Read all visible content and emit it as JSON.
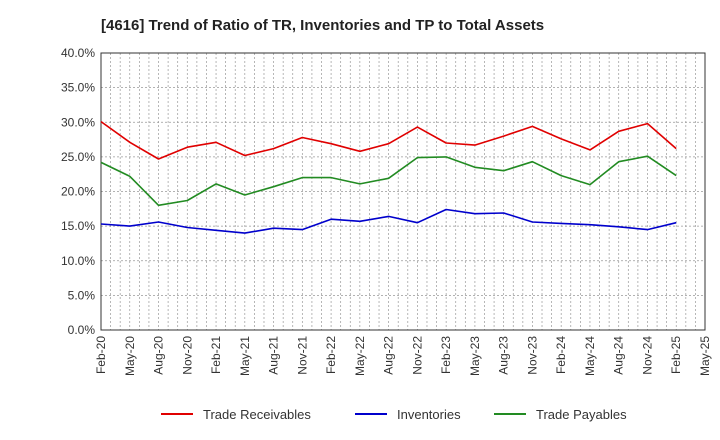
{
  "chart_data": {
    "type": "line",
    "title": "[4616]  Trend of Ratio of TR, Inventories and TP to Total Assets",
    "xlabel": "",
    "ylabel": "",
    "ylim": [
      0,
      40
    ],
    "y_ticks": [
      "0.0%",
      "5.0%",
      "10.0%",
      "15.0%",
      "20.0%",
      "25.0%",
      "30.0%",
      "35.0%",
      "40.0%"
    ],
    "x_ticks": [
      "Feb-20",
      "May-20",
      "Aug-20",
      "Nov-20",
      "Feb-21",
      "May-21",
      "Aug-21",
      "Nov-21",
      "Feb-22",
      "May-22",
      "Aug-22",
      "Nov-22",
      "Feb-23",
      "May-23",
      "Aug-23",
      "Nov-23",
      "Feb-24",
      "May-24",
      "Aug-24",
      "Nov-24",
      "Feb-25",
      "May-25"
    ],
    "x": [
      "Feb-20",
      "May-20",
      "Aug-20",
      "Nov-20",
      "Feb-21",
      "May-21",
      "Aug-21",
      "Nov-21",
      "Feb-22",
      "May-22",
      "Aug-22",
      "Nov-22",
      "Feb-23",
      "May-23",
      "Aug-23",
      "Nov-23",
      "Feb-24",
      "May-24",
      "Aug-24",
      "Nov-24",
      "Feb-25"
    ],
    "grid": true,
    "legend_position": "bottom",
    "series": [
      {
        "name": "Trade Receivables",
        "color": "#e00000",
        "values": [
          30.1,
          27.1,
          24.7,
          26.4,
          27.1,
          25.2,
          26.2,
          27.8,
          26.9,
          25.8,
          26.9,
          29.3,
          27.0,
          26.7,
          28.0,
          29.4,
          27.6,
          26.0,
          28.7,
          29.8,
          26.2
        ]
      },
      {
        "name": "Inventories",
        "color": "#0000cc",
        "values": [
          15.3,
          15.0,
          15.6,
          14.8,
          14.4,
          14.0,
          14.7,
          14.5,
          16.0,
          15.7,
          16.4,
          15.5,
          17.4,
          16.8,
          16.9,
          15.6,
          15.4,
          15.2,
          14.9,
          14.5,
          15.5
        ]
      },
      {
        "name": "Trade Payables",
        "color": "#228b22",
        "values": [
          24.2,
          22.2,
          18.0,
          18.7,
          21.1,
          19.5,
          20.7,
          22.0,
          22.0,
          21.1,
          21.9,
          24.9,
          25.0,
          23.5,
          23.0,
          24.3,
          22.3,
          21.0,
          24.3,
          25.1,
          22.3
        ]
      }
    ]
  }
}
